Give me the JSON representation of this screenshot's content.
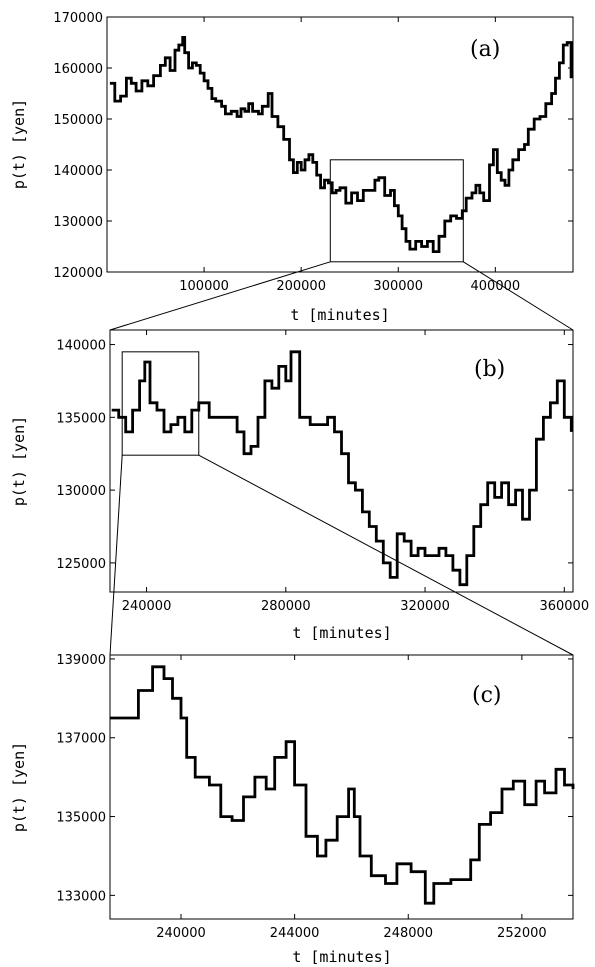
{
  "chart_data": [
    {
      "type": "line",
      "panel_label": "(a)",
      "xlabel": "t [minutes]",
      "ylabel": "p(t) [yen]",
      "xlim": [
        0,
        480000
      ],
      "ylim": [
        120000,
        170000
      ],
      "xticks": [
        100000,
        200000,
        300000,
        400000
      ],
      "yticks": [
        120000,
        130000,
        140000,
        150000,
        160000,
        170000
      ],
      "inset_box": {
        "x": [
          230000,
          367000
        ],
        "y": [
          122000,
          142000
        ]
      },
      "series": [
        {
          "x": [
            3000,
            8000,
            14000,
            20000,
            25000,
            30000,
            36000,
            42000,
            48000,
            55000,
            60000,
            65000,
            70000,
            74000,
            78000,
            80000,
            84000,
            88000,
            92000,
            96000,
            100000,
            104000,
            108000,
            112000,
            118000,
            122000,
            128000,
            134000,
            138000,
            142000,
            146000,
            150000,
            156000,
            160000,
            166000,
            170000,
            176000,
            182000,
            188000,
            192000,
            196000,
            200000,
            204000,
            208000,
            212000,
            216000,
            220000,
            224000,
            228000,
            232000,
            236000,
            240000,
            246000,
            252000,
            258000,
            264000,
            270000,
            276000,
            280000,
            286000,
            292000,
            296000,
            300000,
            304000,
            308000,
            312000,
            318000,
            324000,
            330000,
            336000,
            342000,
            348000,
            354000,
            360000,
            366000,
            370000,
            376000,
            380000,
            384000,
            388000,
            394000,
            398000,
            402000,
            406000,
            410000,
            414000,
            418000,
            424000,
            430000,
            434000,
            440000,
            446000,
            452000,
            458000,
            462000,
            466000,
            470000,
            474000,
            478000
          ],
          "y": [
            157000,
            153500,
            154500,
            158000,
            157000,
            155500,
            157500,
            156500,
            158500,
            160500,
            162000,
            159500,
            163500,
            164500,
            166000,
            163000,
            160000,
            161000,
            160500,
            159000,
            157500,
            156000,
            154000,
            153500,
            152500,
            151000,
            151500,
            150500,
            152000,
            151500,
            153000,
            151500,
            151000,
            152500,
            155000,
            150500,
            148500,
            146000,
            142000,
            139500,
            141500,
            140000,
            142000,
            143000,
            141500,
            139000,
            136500,
            138000,
            137500,
            135500,
            136000,
            136500,
            133500,
            135500,
            134000,
            136000,
            136000,
            138000,
            138500,
            135000,
            136000,
            133000,
            131000,
            128500,
            126000,
            124500,
            126000,
            125000,
            126000,
            124000,
            127000,
            130000,
            131000,
            130500,
            132000,
            134500,
            135500,
            137000,
            135500,
            134000,
            141000,
            144000,
            139500,
            138000,
            137000,
            140000,
            142000,
            144000,
            145000,
            148000,
            150000,
            150500,
            153000,
            155000,
            158000,
            161000,
            164500,
            165000,
            158000
          ]
        }
      ]
    },
    {
      "type": "line",
      "panel_label": "(b)",
      "xlabel": "t [minutes]",
      "ylabel": "p(t) [yen]",
      "xlim": [
        229500,
        362500
      ],
      "ylim": [
        123000,
        141000
      ],
      "xticks": [
        240000,
        280000,
        320000,
        360000
      ],
      "yticks": [
        125000,
        130000,
        135000,
        140000
      ],
      "inset_box": {
        "x": [
          233000,
          255000
        ],
        "y": [
          132400,
          139500
        ]
      },
      "series": [
        {
          "x": [
            230000,
            232000,
            234000,
            236000,
            238000,
            239500,
            241000,
            243000,
            245000,
            247000,
            249000,
            251000,
            253000,
            255000,
            258000,
            261000,
            264000,
            266000,
            268000,
            270000,
            272000,
            274000,
            276000,
            278000,
            280000,
            281500,
            284000,
            287000,
            290000,
            292000,
            294000,
            296000,
            298000,
            300000,
            302000,
            304000,
            306000,
            308000,
            310000,
            312000,
            314000,
            316000,
            318000,
            320000,
            322000,
            324000,
            326000,
            328000,
            330000,
            332000,
            334000,
            336000,
            338000,
            340000,
            342000,
            344000,
            346000,
            348000,
            350000,
            352000,
            354000,
            356000,
            358000,
            360000,
            362000
          ],
          "y": [
            135500,
            135000,
            134000,
            135500,
            137500,
            138800,
            136000,
            135500,
            134000,
            134500,
            135000,
            134000,
            135500,
            136000,
            135000,
            135000,
            135000,
            134000,
            132500,
            133000,
            135000,
            137500,
            137000,
            138500,
            137500,
            139500,
            135000,
            134500,
            134500,
            135000,
            134000,
            132500,
            130500,
            130000,
            128500,
            127500,
            126500,
            125000,
            124000,
            127000,
            126500,
            125500,
            126000,
            125500,
            125500,
            126000,
            125500,
            124500,
            123500,
            125500,
            127500,
            129000,
            130500,
            129500,
            130500,
            129000,
            130000,
            128000,
            130000,
            133500,
            135000,
            136000,
            137500,
            135000,
            134000
          ]
        }
      ]
    },
    {
      "type": "line",
      "panel_label": "(c)",
      "xlabel": "t [minutes]",
      "ylabel": "p(t) [yen]",
      "xlim": [
        237500,
        253800
      ],
      "ylim": [
        132400,
        139100
      ],
      "xticks": [
        240000,
        244000,
        248000,
        252000
      ],
      "yticks": [
        133000,
        135000,
        137000,
        139000
      ],
      "series": [
        {
          "x": [
            237500,
            238500,
            239000,
            239400,
            239700,
            240000,
            240200,
            240500,
            241000,
            241400,
            241800,
            242200,
            242600,
            243000,
            243300,
            243700,
            244000,
            244400,
            244800,
            245100,
            245500,
            245900,
            246100,
            246300,
            246700,
            247200,
            247600,
            248100,
            248600,
            248900,
            249500,
            250200,
            250500,
            250900,
            251300,
            251700,
            252100,
            252500,
            252800,
            253200,
            253500,
            253800
          ],
          "y": [
            137500,
            138200,
            138800,
            138500,
            138000,
            137500,
            136500,
            136000,
            135800,
            135000,
            134900,
            135500,
            136000,
            135700,
            136500,
            136900,
            135800,
            134500,
            134000,
            134400,
            135000,
            135700,
            135000,
            134000,
            133500,
            133300,
            133800,
            133600,
            132800,
            133300,
            133400,
            133900,
            134800,
            135100,
            135700,
            135900,
            135300,
            135900,
            135600,
            136200,
            135800,
            135700
          ]
        }
      ]
    }
  ]
}
